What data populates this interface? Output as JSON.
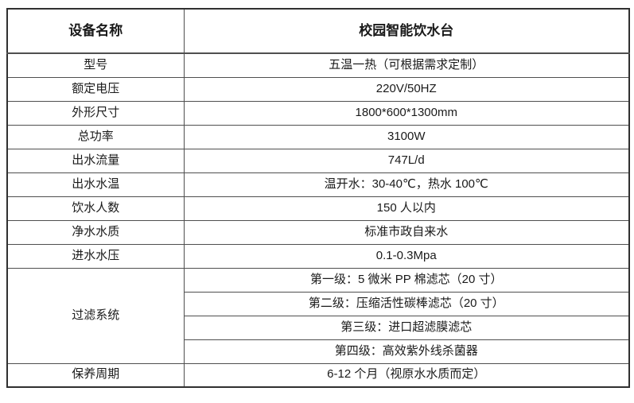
{
  "colors": {
    "border_outer": "#303030",
    "border_inner": "#4f4f4f",
    "text": "#1a1a1a",
    "background": "#ffffff"
  },
  "table": {
    "header": {
      "label": "设备名称",
      "value": "校园智能饮水台"
    },
    "rows": [
      {
        "label": "型号",
        "value": "五温一热（可根据需求定制）"
      },
      {
        "label": "额定电压",
        "value": "220V/50HZ"
      },
      {
        "label": "外形尺寸",
        "value": "1800*600*1300mm"
      },
      {
        "label": "总功率",
        "value": "3100W"
      },
      {
        "label": "出水流量",
        "value": "747L/d"
      },
      {
        "label": "出水水温",
        "value": "温开水：30-40℃，热水 100℃"
      },
      {
        "label": "饮水人数",
        "value": "150 人以内"
      },
      {
        "label": "净水水质",
        "value": "标准市政自来水"
      },
      {
        "label": "进水水压",
        "value": "0.1-0.3Mpa"
      }
    ],
    "filter_group": {
      "label": "过滤系统",
      "stages": [
        "第一级：5 微米 PP 棉滤芯（20 寸）",
        "第二级：压缩活性碳棒滤芯（20 寸）",
        "第三级：进口超滤膜滤芯",
        "第四级：高效紫外线杀菌器"
      ]
    },
    "maintenance": {
      "label": "保养周期",
      "value": "6-12 个月（视原水水质而定）"
    }
  }
}
